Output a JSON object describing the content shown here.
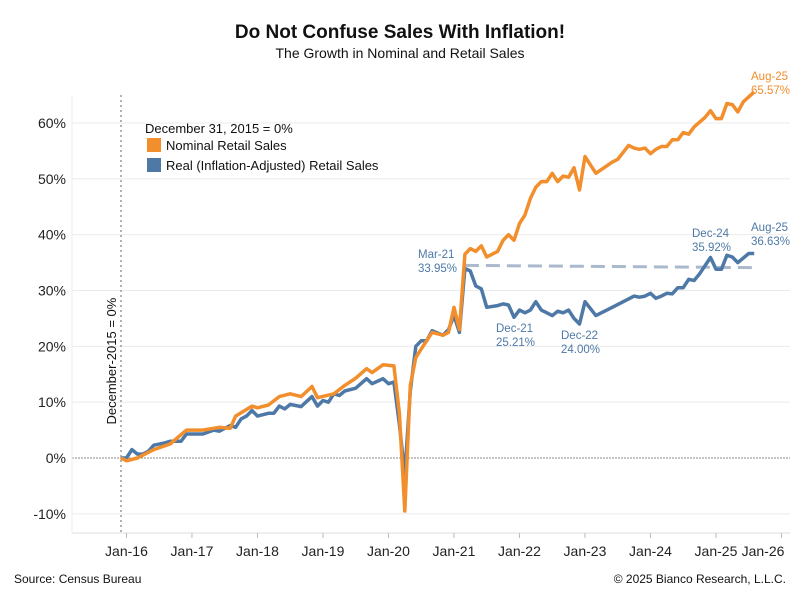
{
  "chart_data": {
    "type": "line",
    "title": "Do Not Confuse Sales With Inflation!",
    "subtitle": "The Growth in Nominal and Retail Sales",
    "ylim": [
      -13,
      66
    ],
    "yticks": [
      -10,
      0,
      10,
      20,
      30,
      40,
      50,
      60
    ],
    "ytick_labels": [
      "-10%",
      "0%",
      "10%",
      "20%",
      "30%",
      "40%",
      "50%",
      "60%"
    ],
    "xticks": [
      "2016-01",
      "2017-01",
      "2018-01",
      "2019-01",
      "2020-01",
      "2021-01",
      "2022-01",
      "2023-01",
      "2024-01",
      "2025-01",
      "2026-01"
    ],
    "xtick_labels": [
      "Jan-16",
      "Jan-17",
      "Jan-18",
      "Jan-19",
      "Jan-20",
      "Jan-21",
      "Jan-22",
      "Jan-23",
      "Jan-24",
      "Jan-25",
      "Jan-26"
    ],
    "grid": true,
    "legend": {
      "position": "top-left",
      "header": "December 31, 2015 = 0%"
    },
    "reference_line": {
      "date": "2015-12",
      "label": "December-2015 = 0%"
    },
    "series": [
      {
        "name": "Nominal Retail Sales",
        "color": "#f28e2b",
        "points": [
          [
            "2015-12",
            0
          ],
          [
            "2016-01",
            -0.5
          ],
          [
            "2016-03",
            0
          ],
          [
            "2016-06",
            1.5
          ],
          [
            "2016-09",
            2.5
          ],
          [
            "2016-12",
            5
          ],
          [
            "2017-03",
            5
          ],
          [
            "2017-06",
            5.5
          ],
          [
            "2017-08",
            5.3
          ],
          [
            "2017-09",
            7.5
          ],
          [
            "2017-12",
            9.3
          ],
          [
            "2018-01",
            9
          ],
          [
            "2018-03",
            9.5
          ],
          [
            "2018-05",
            11
          ],
          [
            "2018-07",
            11.5
          ],
          [
            "2018-09",
            11
          ],
          [
            "2018-11",
            12.8
          ],
          [
            "2018-12",
            10.8
          ],
          [
            "2019-03",
            11.5
          ],
          [
            "2019-05",
            13
          ],
          [
            "2019-07",
            14.3
          ],
          [
            "2019-09",
            16
          ],
          [
            "2019-10",
            15.3
          ],
          [
            "2019-12",
            16.7
          ],
          [
            "2020-02",
            16.5
          ],
          [
            "2020-03",
            8
          ],
          [
            "2020-04",
            -9.5
          ],
          [
            "2020-05",
            13
          ],
          [
            "2020-06",
            18
          ],
          [
            "2020-07",
            19.5
          ],
          [
            "2020-09",
            22.5
          ],
          [
            "2020-11",
            22
          ],
          [
            "2020-12",
            22.5
          ],
          [
            "2021-01",
            27
          ],
          [
            "2021-02",
            23
          ],
          [
            "2021-03",
            36.5
          ],
          [
            "2021-04",
            37.5
          ],
          [
            "2021-05",
            37
          ],
          [
            "2021-06",
            38
          ],
          [
            "2021-07",
            36
          ],
          [
            "2021-09",
            37
          ],
          [
            "2021-10",
            39
          ],
          [
            "2021-11",
            40
          ],
          [
            "2021-12",
            39
          ],
          [
            "2022-01",
            42
          ],
          [
            "2022-02",
            43.5
          ],
          [
            "2022-03",
            46.5
          ],
          [
            "2022-04",
            48.5
          ],
          [
            "2022-05",
            49.5
          ],
          [
            "2022-06",
            49.5
          ],
          [
            "2022-07",
            51
          ],
          [
            "2022-08",
            49.5
          ],
          [
            "2022-09",
            50.5
          ],
          [
            "2022-10",
            50.3
          ],
          [
            "2022-11",
            52
          ],
          [
            "2022-12",
            48
          ],
          [
            "2023-01",
            54
          ],
          [
            "2023-03",
            51
          ],
          [
            "2023-06",
            53
          ],
          [
            "2023-07",
            53.5
          ],
          [
            "2023-09",
            56
          ],
          [
            "2023-10",
            55.5
          ],
          [
            "2023-11",
            55.3
          ],
          [
            "2023-12",
            55.5
          ],
          [
            "2024-01",
            54.5
          ],
          [
            "2024-02",
            55.3
          ],
          [
            "2024-03",
            55.8
          ],
          [
            "2024-04",
            55.8
          ],
          [
            "2024-05",
            57
          ],
          [
            "2024-06",
            57
          ],
          [
            "2024-07",
            58.3
          ],
          [
            "2024-08",
            58
          ],
          [
            "2024-09",
            59.3
          ],
          [
            "2024-11",
            61
          ],
          [
            "2024-12",
            62.2
          ],
          [
            "2025-01",
            60.8
          ],
          [
            "2025-02",
            60.8
          ],
          [
            "2025-03",
            63.5
          ],
          [
            "2025-04",
            63.3
          ],
          [
            "2025-05",
            62
          ],
          [
            "2025-06",
            63.8
          ],
          [
            "2025-08",
            65.57
          ]
        ]
      },
      {
        "name": "Real (Inflation-Adjusted) Retail Sales",
        "color": "#4e79a7",
        "points": [
          [
            "2015-12",
            0
          ],
          [
            "2016-01",
            0
          ],
          [
            "2016-02",
            1.5
          ],
          [
            "2016-03",
            0.7
          ],
          [
            "2016-04",
            0.7
          ],
          [
            "2016-05",
            1.2
          ],
          [
            "2016-06",
            2.3
          ],
          [
            "2016-08",
            2.7
          ],
          [
            "2016-09",
            3
          ],
          [
            "2016-11",
            3
          ],
          [
            "2016-12",
            4.3
          ],
          [
            "2017-03",
            4.3
          ],
          [
            "2017-05",
            5
          ],
          [
            "2017-06",
            4.8
          ],
          [
            "2017-08",
            5.8
          ],
          [
            "2017-09",
            5.5
          ],
          [
            "2017-10",
            7
          ],
          [
            "2017-11",
            7.5
          ],
          [
            "2017-12",
            8.5
          ],
          [
            "2018-01",
            7.5
          ],
          [
            "2018-03",
            8
          ],
          [
            "2018-04",
            8
          ],
          [
            "2018-05",
            9.3
          ],
          [
            "2018-06",
            8.8
          ],
          [
            "2018-07",
            9.6
          ],
          [
            "2018-09",
            9.2
          ],
          [
            "2018-11",
            11
          ],
          [
            "2018-12",
            9.3
          ],
          [
            "2019-01",
            10.3
          ],
          [
            "2019-02",
            10
          ],
          [
            "2019-03",
            11.5
          ],
          [
            "2019-04",
            11.2
          ],
          [
            "2019-05",
            12
          ],
          [
            "2019-07",
            12.5
          ],
          [
            "2019-09",
            14.2
          ],
          [
            "2019-10",
            13.3
          ],
          [
            "2019-12",
            14.2
          ],
          [
            "2020-01",
            13.3
          ],
          [
            "2020-02",
            13.6
          ],
          [
            "2020-03",
            6
          ],
          [
            "2020-04",
            -3
          ],
          [
            "2020-05",
            12
          ],
          [
            "2020-06",
            20
          ],
          [
            "2020-07",
            21
          ],
          [
            "2020-08",
            21
          ],
          [
            "2020-09",
            22.8
          ],
          [
            "2020-11",
            22
          ],
          [
            "2020-12",
            23
          ],
          [
            "2021-01",
            25.5
          ],
          [
            "2021-02",
            22.5
          ],
          [
            "2021-03",
            33.95
          ],
          [
            "2021-04",
            33.5
          ],
          [
            "2021-05",
            30.8
          ],
          [
            "2021-06",
            30.3
          ],
          [
            "2021-07",
            27
          ],
          [
            "2021-09",
            27.3
          ],
          [
            "2021-10",
            27.6
          ],
          [
            "2021-11",
            27.4
          ],
          [
            "2021-12",
            25.21
          ],
          [
            "2022-01",
            26.5
          ],
          [
            "2022-02",
            26
          ],
          [
            "2022-03",
            26.5
          ],
          [
            "2022-04",
            28
          ],
          [
            "2022-05",
            26.5
          ],
          [
            "2022-06",
            26
          ],
          [
            "2022-07",
            25.5
          ],
          [
            "2022-08",
            26.3
          ],
          [
            "2022-09",
            26
          ],
          [
            "2022-10",
            26.5
          ],
          [
            "2022-11",
            25
          ],
          [
            "2022-12",
            24.0
          ],
          [
            "2023-01",
            28
          ],
          [
            "2023-03",
            25.5
          ],
          [
            "2023-06",
            27
          ],
          [
            "2023-09",
            28.5
          ],
          [
            "2023-10",
            29
          ],
          [
            "2023-11",
            28.8
          ],
          [
            "2023-12",
            29
          ],
          [
            "2024-01",
            29.5
          ],
          [
            "2024-02",
            28.6
          ],
          [
            "2024-03",
            29
          ],
          [
            "2024-04",
            29.5
          ],
          [
            "2024-05",
            29.4
          ],
          [
            "2024-06",
            30.5
          ],
          [
            "2024-07",
            30.5
          ],
          [
            "2024-08",
            32
          ],
          [
            "2024-09",
            31.8
          ],
          [
            "2024-10",
            33
          ],
          [
            "2024-12",
            35.92
          ],
          [
            "2025-01",
            33.8
          ],
          [
            "2025-02",
            33.8
          ],
          [
            "2025-03",
            36.3
          ],
          [
            "2025-04",
            36
          ],
          [
            "2025-05",
            35
          ],
          [
            "2025-07",
            36.63
          ],
          [
            "2025-08",
            36.63
          ]
        ]
      }
    ],
    "trend_line": {
      "color": "#aab9cc",
      "points": [
        [
          "2021-03",
          34.5
        ],
        [
          "2025-08",
          34.1
        ]
      ]
    },
    "annotations": [
      {
        "date": "2021-03",
        "label": "Mar-21",
        "value": "33.95%",
        "color": "#4e79a7",
        "anchor": "left"
      },
      {
        "date": "2021-12",
        "label": "Dec-21",
        "value": "25.21%",
        "color": "#4e79a7",
        "anchor": "below"
      },
      {
        "date": "2022-12",
        "label": "Dec-22",
        "value": "24.00%",
        "color": "#4e79a7",
        "anchor": "below"
      },
      {
        "date": "2024-12",
        "label": "Dec-24",
        "value": "35.92%",
        "color": "#4e79a7",
        "anchor": "above"
      },
      {
        "date": "2025-08",
        "label": "Aug-25",
        "value": "36.63%",
        "color": "#4e79a7",
        "anchor": "above"
      },
      {
        "date": "2025-08",
        "label": "Aug-25",
        "value": "65.57%",
        "color": "#f28e2b",
        "anchor": "above"
      }
    ]
  },
  "footer": {
    "source": "Source: Census Bureau",
    "copyright": "© 2025 Bianco Research, L.L.C."
  }
}
